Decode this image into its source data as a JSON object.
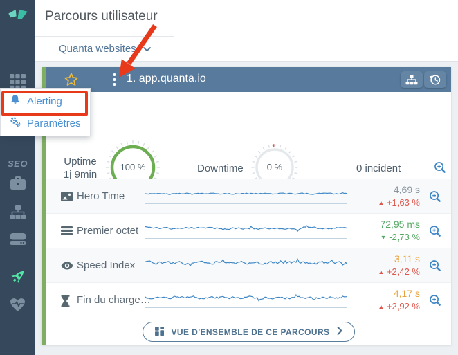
{
  "colors": {
    "sidebar_bg": "#36495c",
    "accent_blue": "#3e86c6",
    "card_header_bg": "#587a9c",
    "green_strip": "#7fae62",
    "gauge_green": "#6cae51",
    "annotation_red": "#e8391b",
    "menu_blue": "#4a90d2",
    "star_yellow": "#ecbc3f",
    "spark_blue": "#3f87c5",
    "rocket_green": "#53e5a6"
  },
  "header": {
    "title": "Parcours utilisateur"
  },
  "tabs": {
    "selected": "Quanta websites"
  },
  "sidebar": {
    "logo": "quanta-logo",
    "section_label": "SEO",
    "items": [
      {
        "icon": "apps-grid-icon"
      },
      {
        "icon": "briefcase-icon"
      },
      {
        "icon": "sitemap-icon"
      },
      {
        "icon": "server-icon"
      },
      {
        "icon": "rocket-icon",
        "active": true
      },
      {
        "icon": "heart-pulse-icon"
      }
    ]
  },
  "menu": {
    "items": [
      {
        "label": "Alerting",
        "icon": "bell-icon",
        "highlighted": true
      },
      {
        "label": "Paramètres",
        "icon": "gears-icon"
      }
    ]
  },
  "card": {
    "title": "1. app.quanta.io",
    "header_buttons": [
      {
        "icon": "sitemap-icon"
      },
      {
        "icon": "history-icon"
      }
    ],
    "uptime": {
      "label": "Uptime",
      "duration": "1j 9min",
      "value": "100 %"
    },
    "downtime": {
      "label": "Downtime",
      "value": "0 %"
    },
    "incidents": "0 incident",
    "metrics": [
      {
        "label": "Hero Time",
        "icon": "image-icon",
        "value": "4,69 s",
        "value_color": "#8a959e",
        "arrow": "▲",
        "change": "+1,63 %",
        "change_color": "#e0554a",
        "spark_seed": 11,
        "spark_amp": 1.5
      },
      {
        "label": "Premier octet",
        "icon": "list-icon",
        "value": "72,95 ms",
        "value_color": "#56a965",
        "arrow": "▼",
        "change": "-2,73 %",
        "change_color": "#56a965",
        "spark_seed": 27,
        "spark_amp": 2.4
      },
      {
        "label": "Speed Index",
        "icon": "eye-icon",
        "value": "3,11 s",
        "value_color": "#e8a33d",
        "arrow": "▲",
        "change": "+2,42 %",
        "change_color": "#e0554a",
        "spark_seed": 53,
        "spark_amp": 3.6
      },
      {
        "label": "Fin du charge…",
        "icon": "hourglass-icon",
        "value": "4,17 s",
        "value_color": "#e8a33d",
        "arrow": "▲",
        "change": "+2,92 %",
        "change_color": "#e0554a",
        "spark_seed": 74,
        "spark_amp": 3.2
      }
    ],
    "footer_button": "VUE D'ENSEMBLE DE CE PARCOURS"
  }
}
